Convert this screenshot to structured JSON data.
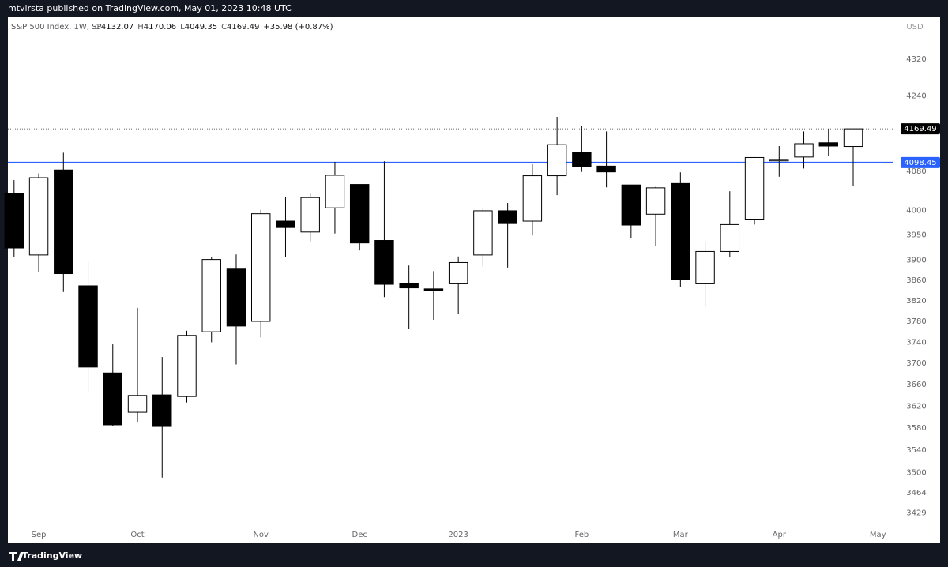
{
  "header": {
    "publisher": "mtvirsta published on TradingView.com, May 01, 2023 10:48 UTC"
  },
  "footer": {
    "brand": "TradingView"
  },
  "chart_data": {
    "type": "candlestick",
    "symbol": "S&P 500 Index, 1W, SP",
    "legend": [
      {
        "key": "O",
        "value": "4132.07"
      },
      {
        "key": "H",
        "value": "4170.06"
      },
      {
        "key": "L",
        "value": "4049.35"
      },
      {
        "key": "C",
        "value": "4169.49"
      }
    ],
    "change": "+35.98 (+0.87%)",
    "currency": "USD",
    "x": [
      0,
      1,
      2,
      3,
      4,
      5,
      6,
      7,
      8,
      9,
      10,
      11,
      12,
      13,
      14,
      15,
      16,
      17,
      18,
      19,
      20,
      21,
      22,
      23,
      24,
      25,
      26,
      27,
      28,
      29,
      30,
      31,
      32,
      33,
      34
    ],
    "open": [
      4034,
      3910,
      4083,
      3849,
      3682,
      3609,
      3641,
      3638,
      3760,
      3882,
      3780,
      3978,
      3956,
      4005,
      4053,
      3939,
      3854,
      3843,
      3853,
      3910,
      3999,
      3978,
      4071,
      4120,
      4091,
      4052,
      3992,
      4055,
      3853,
      3917,
      3982,
      4102,
      4110,
      4140,
      4132.07
    ],
    "high": [
      4062,
      4076,
      4119,
      3899,
      3736,
      3806,
      3712,
      3762,
      3905,
      3911,
      4001,
      4028,
      4034,
      4100,
      4053,
      4101,
      3889,
      3878,
      3907,
      4003,
      4015,
      4095,
      4195,
      4176,
      4164,
      4052,
      4048,
      4078,
      3937,
      4039,
      4110,
      4133,
      4164,
      4169,
      4170.06
    ],
    "low": [
      3906,
      3877,
      3837,
      3647,
      3584,
      3591,
      3491,
      3627,
      3740,
      3698,
      3749,
      3906,
      3937,
      3953,
      3919,
      3827,
      3765,
      3783,
      3795,
      3887,
      3885,
      3949,
      4031,
      4079,
      4047,
      3943,
      3928,
      3847,
      3808,
      3905,
      3971,
      4069,
      4086,
      4113,
      4049.35
    ],
    "close": [
      3924,
      4067,
      3873,
      3693,
      3586,
      3640,
      3583,
      3753,
      3901,
      3771,
      3993,
      3965,
      4026,
      4072,
      3934,
      3852,
      3845,
      3840,
      3895,
      3999,
      3973,
      4071,
      4136,
      4090,
      4079,
      3970,
      4046,
      3862,
      3917,
      3971,
      4109,
      4105,
      4138,
      4133,
      4169.49
    ],
    "up_color": "#ffffff",
    "down_color": "#000000",
    "wick_color": "#000000",
    "xlim": [
      -0.25,
      35.6
    ],
    "xticks": [
      {
        "value": 1,
        "label": "Sep"
      },
      {
        "value": 5,
        "label": "Oct"
      },
      {
        "value": 10,
        "label": "Nov"
      },
      {
        "value": 14,
        "label": "Dec"
      },
      {
        "value": 18,
        "label": "2023"
      },
      {
        "value": 23,
        "label": "Feb"
      },
      {
        "value": 27,
        "label": "Mar"
      },
      {
        "value": 31,
        "label": "Apr"
      },
      {
        "value": 35,
        "label": "May"
      }
    ],
    "ylim": [
      3376,
      4413
    ],
    "log_scale": true,
    "yticks": [
      3429,
      3464,
      3500,
      3540,
      3580,
      3620,
      3660,
      3700,
      3740,
      3780,
      3820,
      3860,
      3900,
      3950,
      4000,
      4080,
      4240,
      4320
    ],
    "last_price": {
      "value": 4169.49,
      "label": "4169.49",
      "color": "#000000"
    },
    "hline": {
      "value": 4098.45,
      "label": "4098.45",
      "color": "#2962ff"
    }
  }
}
